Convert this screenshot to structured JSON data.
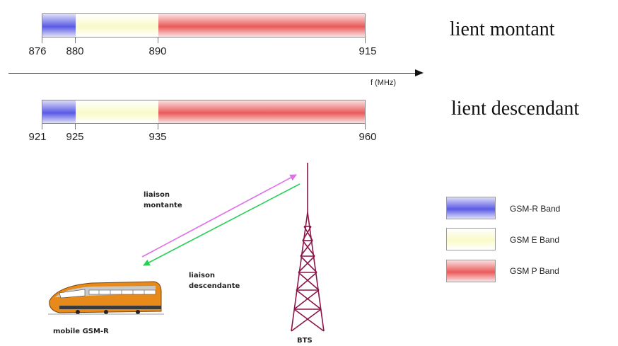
{
  "uplink": {
    "title": "lient montant",
    "ticks": [
      "876",
      "880",
      "890",
      "915"
    ]
  },
  "axis": {
    "label": "f (MHz)"
  },
  "downlink": {
    "title": "lient descendant",
    "ticks": [
      "921",
      "925",
      "935",
      "960"
    ]
  },
  "illustration": {
    "uplink_label": "liaison\nmontante",
    "downlink_label": "liaison\ndescendante",
    "train_label": "mobile GSM-R",
    "tower_label": "BTS"
  },
  "legend": [
    {
      "label": "GSM-R Band",
      "color": "#5a5ae6"
    },
    {
      "label": "GSM E Band",
      "color": "#fafac8"
    },
    {
      "label": "GSM P Band",
      "color": "#ea5a5a"
    }
  ]
}
